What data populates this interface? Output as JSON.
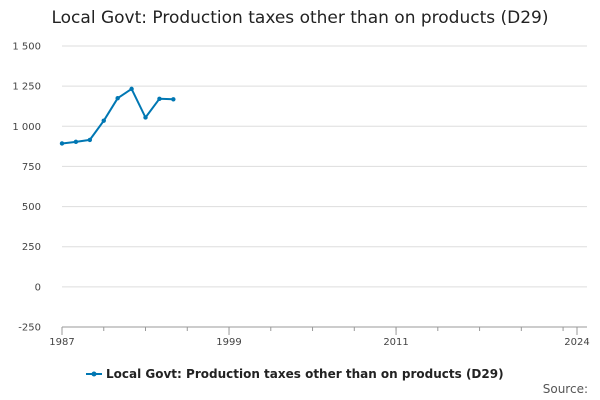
{
  "chart_data": {
    "type": "line",
    "title": "Local Govt: Production taxes other than on products (D29)",
    "xlabel": "",
    "ylabel": "",
    "x": [
      1987,
      1988,
      1989,
      1990,
      1991,
      1992,
      1993,
      1994,
      1995
    ],
    "series": [
      {
        "name": "Local Govt: Production taxes other than on products (D29)",
        "values": [
          893,
          903,
          915,
          1035,
          1175,
          1233,
          1055,
          1171,
          1168
        ],
        "color": "#0077b3"
      }
    ],
    "xlim": [
      1987,
      2024
    ],
    "ylim": [
      -250,
      1500
    ],
    "x_ticks": [
      1987,
      1999,
      2011,
      2024
    ],
    "x_tick_labels": [
      "1987",
      "1999",
      "2011",
      "2024"
    ],
    "y_ticks": [
      -250,
      0,
      250,
      500,
      750,
      1000,
      1250,
      1500
    ],
    "y_tick_labels": [
      "-250",
      "0",
      "250",
      "500",
      "750",
      "1 000",
      "1 250",
      "1 500"
    ],
    "grid": true,
    "legend_position": "bottom",
    "source_label": "Source:"
  }
}
